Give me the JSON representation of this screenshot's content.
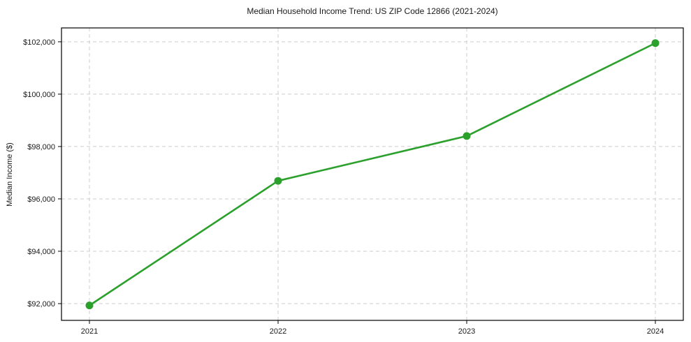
{
  "figure": {
    "title": "Median Household Income Trend: US ZIP Code 12866 (2021-2024)"
  },
  "chart_data": {
    "type": "line",
    "title": "Median Household Income Trend: US ZIP Code 12866 (2021-2024)",
    "xlabel": "",
    "ylabel": "Median Income ($)",
    "categories": [
      "2021",
      "2022",
      "2023",
      "2024"
    ],
    "series": [
      {
        "name": "Median Household Income",
        "values": [
          91930,
          96690,
          98400,
          101950
        ]
      }
    ],
    "yticks": {
      "values": [
        92000,
        94000,
        96000,
        98000,
        100000,
        102000
      ],
      "labels": [
        "$92,000",
        "$94,000",
        "$96,000",
        "$98,000",
        "$100,000",
        "$102,000"
      ]
    },
    "ylim": [
      91360,
      102530
    ],
    "grid": "dashed-both-axes",
    "legend": "none",
    "line_color": "#2ca02c",
    "marker": "circle",
    "marker_color": "#2ca02c",
    "gridline_color": "#cccccc",
    "axis_border_color": "#000000",
    "tick_color": "#000000",
    "text_color": "#1a1a1a",
    "background_color": "#ffffff"
  }
}
